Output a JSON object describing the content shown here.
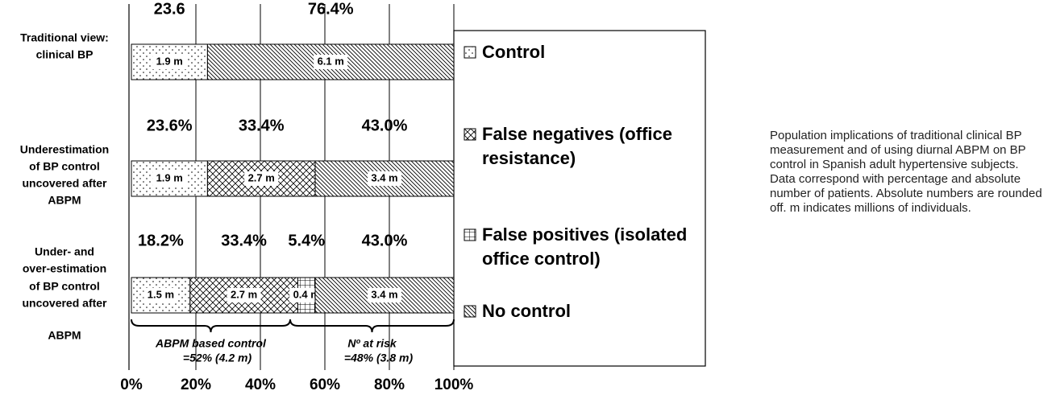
{
  "chart_data": {
    "type": "stacked-barh",
    "categories": [
      [
        "Traditional view:",
        "clinical BP"
      ],
      [
        "Underestimation",
        "of BP control",
        "uncovered after",
        "ABPM"
      ],
      [
        "Under- and",
        "over-estimation",
        "of BP control",
        "uncovered after",
        "ABPM"
      ]
    ],
    "series": [
      {
        "name": "Control",
        "color": "#000000",
        "values": [
          23.6,
          23.6,
          18.2
        ],
        "value_labels": [
          "23.6",
          "23.6%",
          "18.2%"
        ],
        "count_labels": [
          "1.9 m",
          "1.9 m",
          "1.5 m"
        ]
      },
      {
        "name": "False negatives (office resistance)",
        "color": "#000000",
        "values": [
          0,
          33.4,
          33.4
        ],
        "value_labels": [
          null,
          "33.4%",
          "33.4%"
        ],
        "count_labels": [
          null,
          "2.7 m",
          "2.7 m"
        ]
      },
      {
        "name": "False positives (isolated office control)",
        "color": "#000000",
        "values": [
          0,
          0,
          5.4
        ],
        "value_labels": [
          null,
          null,
          "5.4%"
        ],
        "count_labels": [
          null,
          null,
          "0.4 m"
        ]
      },
      {
        "name": "No control",
        "color": "#000000",
        "values": [
          76.4,
          43.0,
          43.0
        ],
        "value_labels": [
          "76.4%",
          "43.0%",
          "43.0%"
        ],
        "count_labels": [
          "6.1 m",
          "3.4 m",
          "3.4 m"
        ]
      }
    ],
    "xlim": [
      0,
      100
    ],
    "xticks": [
      {
        "value": 0,
        "label": "0%"
      },
      {
        "value": 20,
        "label": "20%"
      },
      {
        "value": 40,
        "label": "40%"
      },
      {
        "value": 60,
        "label": "60%"
      },
      {
        "value": 80,
        "label": "80%"
      },
      {
        "value": 100,
        "label": "100%"
      }
    ],
    "grid": true,
    "annotations": [
      [
        "ABPM based control",
        "=52% (4.2 m)"
      ],
      [
        "Nº at risk",
        "=48% (3.8 m)"
      ]
    ]
  },
  "caption": "Population implications of traditional clinical BP measurement and of using diurnal ABPM on BP control in Spanish adult hypertensive subjects. Data correspond with percentage and absolute number of patients. Absolute numbers are rounded off. m indicates millions of individuals."
}
